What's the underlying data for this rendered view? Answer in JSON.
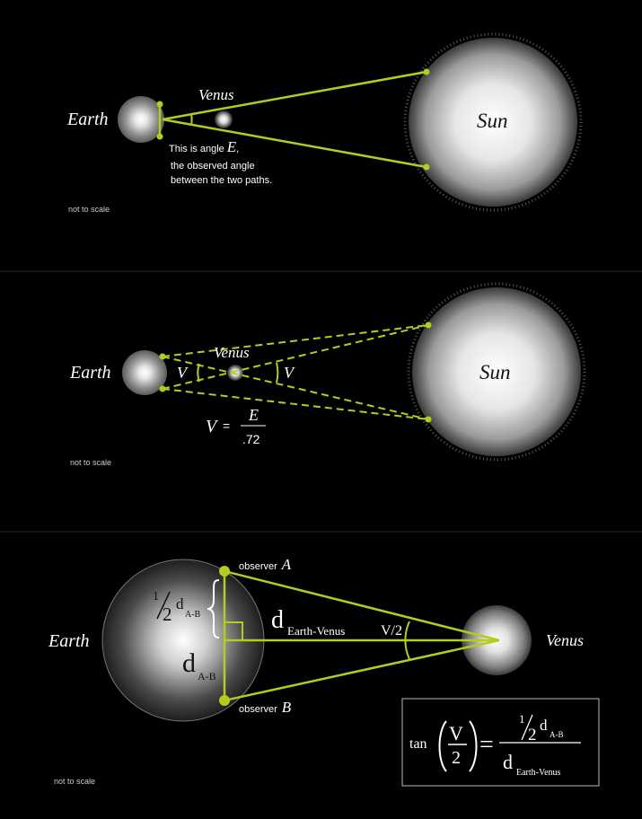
{
  "colors": {
    "accent": "#b5cc1e",
    "background": "#000000",
    "divider": "#2a2a2a",
    "text": "#ffffff"
  },
  "panel1": {
    "earth": "Earth",
    "venus": "Venus",
    "sun": "Sun",
    "note_line1_prefix": "This is angle",
    "note_symbol": "E",
    "note_line1_suffix": ",",
    "note_line2": "the observed angle",
    "note_line3": "between the two paths.",
    "scale": "not to scale"
  },
  "panel2": {
    "earth": "Earth",
    "venus": "Venus",
    "sun": "Sun",
    "angle_left": "V",
    "angle_right": "V",
    "eq_lhs": "V",
    "eq_sign": "=",
    "eq_num": "E",
    "eq_den": ".72",
    "scale": "not to scale"
  },
  "panel3": {
    "earth": "Earth",
    "venus": "Venus",
    "observer_a_label": "observer",
    "observer_a_symbol": "A",
    "observer_b_label": "observer",
    "observer_b_symbol": "B",
    "half_num": "1",
    "half_den": "2",
    "d_letter": "d",
    "sub_ab": "A-B",
    "sub_ev": "Earth-Venus",
    "angle_label": "V/2",
    "scale": "not to scale",
    "formula": {
      "tan": "tan",
      "v": "V",
      "two": "2",
      "equals": "=",
      "half_num": "1",
      "half_den": "2",
      "d": "d",
      "sub_ab": "A-B",
      "sub_ev": "Earth-Venus"
    }
  }
}
